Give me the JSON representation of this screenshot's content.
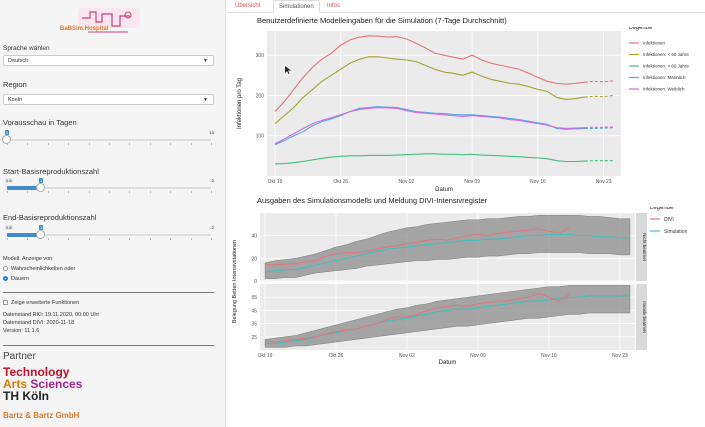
{
  "app": {
    "logo_text": "BaBSim.Hospital"
  },
  "sidebar": {
    "language_label": "Sprache wählen",
    "language_value": "Deutsch",
    "region_label": "Region",
    "region_value": "Koeln",
    "forecast_label": "Vorausschau in Tagen",
    "forecast_slider": {
      "min": 0,
      "max": 14,
      "value": 0,
      "min_label": "0",
      "max_label": "14",
      "value_label": "0"
    },
    "start_r_label": "Start-Basisreproduktionszahl",
    "start_r_slider": {
      "min": 0.8,
      "max": 2,
      "value": 1,
      "min_label": "0.8",
      "max_label": "2",
      "value_label": "1"
    },
    "end_r_label": "End-Basisreproduktionszahl",
    "end_r_slider": {
      "min": 0.8,
      "max": 2,
      "value": 1,
      "min_label": "0.8",
      "max_label": "2",
      "value_label": "1"
    },
    "model_label": "Modell. Anzeige von:",
    "radio_probabilities": "Wahrscheinlichkeiten oder",
    "radio_durations": "Dauern",
    "extended_functions": "Zeige erweiterte Funktionen",
    "data_rki": "Datenstand RKI: 19.11.2020, 00:00 Uhr",
    "data_divi": "Datenstand DIVI: 2020-11-18",
    "version": "Version: 11.1.6",
    "partner_label": "Partner",
    "partner_logo_1": "Technology",
    "partner_logo_2a": "Arts ",
    "partner_logo_2b": "Sciences",
    "partner_logo_3": "TH Köln",
    "partner_logo_4": "Bartz & Bartz GmbH"
  },
  "tabs": [
    "Übersicht",
    "Simulationen",
    "Infos"
  ],
  "colors": {
    "accent": "#d9534f",
    "slider": "#428bca"
  },
  "chart_data": [
    {
      "type": "line",
      "title": "Benutzerdefinierte Modelleingaben für die Simulation (7-Tage Durchschnitt)",
      "xlabel": "Datum",
      "ylabel": "Infektionen pro Tag",
      "x_ticks": [
        "Okt 19",
        "Okt 26",
        "Nov 02",
        "Nov 09",
        "Nov 16",
        "Nov 23"
      ],
      "ylim": [
        0,
        360
      ],
      "y_ticks": [
        100,
        200,
        300
      ],
      "legend_title": "Legende",
      "legend_position": "right",
      "dashed_from_day": 33,
      "series": [
        {
          "name": "Infektionen",
          "color": "#e8737b",
          "values": [
            160,
            185,
            215,
            245,
            270,
            290,
            305,
            325,
            338,
            345,
            348,
            347,
            345,
            346,
            340,
            330,
            318,
            305,
            300,
            295,
            290,
            300,
            288,
            280,
            275,
            270,
            265,
            255,
            245,
            235,
            230,
            228,
            230,
            233,
            235,
            234,
            236
          ]
        },
        {
          "name": "Infektionen: < 60 Jahre",
          "color": "#a3a52f",
          "values": [
            130,
            150,
            170,
            195,
            215,
            235,
            250,
            265,
            280,
            290,
            296,
            296,
            293,
            290,
            288,
            284,
            275,
            265,
            258,
            255,
            250,
            258,
            248,
            240,
            235,
            230,
            228,
            222,
            215,
            210,
            195,
            190,
            192,
            196,
            198,
            197,
            200
          ]
        },
        {
          "name": "Infektionen: > 60 Jahre",
          "color": "#3bbf7a",
          "values": [
            30,
            31,
            33,
            36,
            40,
            44,
            47,
            49,
            50,
            50,
            51,
            51,
            51,
            52,
            53,
            54,
            55,
            55,
            54,
            54,
            53,
            54,
            52,
            51,
            50,
            49,
            48,
            46,
            45,
            43,
            38,
            36,
            36,
            37,
            38,
            38,
            38
          ]
        },
        {
          "name": "Infektionen: Männlich",
          "color": "#4fa8e8",
          "values": [
            78,
            88,
            100,
            110,
            125,
            135,
            142,
            150,
            160,
            168,
            170,
            172,
            171,
            170,
            165,
            160,
            158,
            156,
            155,
            153,
            152,
            152,
            150,
            148,
            146,
            143,
            140,
            136,
            132,
            128,
            118,
            116,
            117,
            118,
            118,
            119,
            120
          ]
        },
        {
          "name": "Infektionen: Weiblich",
          "color": "#d866e0",
          "values": [
            80,
            92,
            105,
            118,
            130,
            138,
            145,
            152,
            160,
            165,
            168,
            170,
            169,
            168,
            162,
            158,
            156,
            154,
            152,
            150,
            148,
            150,
            148,
            146,
            144,
            140,
            138,
            134,
            130,
            126,
            120,
            118,
            119,
            120,
            121,
            121,
            122
          ]
        }
      ]
    },
    {
      "type": "line",
      "title": "Ausgaben des Simulationsmodells und Meldung DIVI-Intensivregister",
      "xlabel": "Datum",
      "ylabel": "Belegung Betten Intensivstationen",
      "x_ticks": [
        "Okt 19",
        "Okt 26",
        "Nov 02",
        "Nov 09",
        "Nov 16",
        "Nov 23"
      ],
      "legend_title": "Legende",
      "legend_position": "right",
      "panels": [
        {
          "strip": "Nicht beatmet",
          "ylim": [
            0,
            60
          ],
          "y_ticks": [
            0,
            20,
            40
          ],
          "DIVI": [
            15,
            14,
            15,
            15,
            17,
            18,
            22,
            24,
            25,
            25,
            26,
            28,
            30,
            31,
            33,
            34,
            36,
            37,
            36,
            38,
            40,
            41,
            40,
            42,
            43,
            44,
            45,
            46,
            44,
            42,
            47
          ],
          "Simulation": [
            8,
            9,
            10,
            10,
            12,
            14,
            16,
            18,
            20,
            22,
            24,
            26,
            28,
            29,
            30,
            31,
            32,
            33,
            34,
            35,
            36,
            36,
            37,
            37,
            38,
            39,
            40,
            40,
            41,
            41,
            41,
            40,
            40,
            39,
            39,
            38,
            38
          ],
          "band_low": [
            2,
            2,
            3,
            3,
            5,
            7,
            8,
            9,
            10,
            11,
            13,
            14,
            15,
            16,
            17,
            18,
            18,
            19,
            19,
            20,
            21,
            21,
            22,
            22,
            23,
            24,
            24,
            25,
            25,
            25,
            25,
            25,
            24,
            24,
            24,
            23,
            23
          ],
          "band_high": [
            16,
            18,
            19,
            20,
            22,
            24,
            27,
            30,
            32,
            35,
            37,
            40,
            43,
            45,
            47,
            48,
            50,
            51,
            52,
            53,
            54,
            54,
            55,
            55,
            56,
            57,
            57,
            58,
            58,
            58,
            58,
            58,
            57,
            57,
            56,
            55,
            55
          ]
        },
        {
          "strip": "Invasiv beatmet",
          "ylim": [
            15,
            65
          ],
          "y_ticks": [
            25,
            35,
            45,
            55
          ],
          "DIVI": [
            22,
            21,
            22,
            23,
            24,
            25,
            27,
            29,
            30,
            31,
            33,
            35,
            38,
            40,
            40,
            42,
            45,
            47,
            48,
            49,
            48,
            50,
            51,
            52,
            52,
            54,
            55,
            58,
            55,
            52,
            57
          ],
          "Simulation": [
            20,
            20,
            21,
            22,
            23,
            25,
            27,
            28,
            30,
            31,
            33,
            35,
            37,
            38,
            39,
            41,
            42,
            44,
            45,
            46,
            46,
            47,
            48,
            49,
            50,
            51,
            52,
            52,
            53,
            54,
            55,
            55,
            56,
            56,
            56,
            56,
            56
          ],
          "band_low": [
            17,
            17,
            17,
            18,
            18,
            19,
            20,
            21,
            22,
            23,
            24,
            25,
            26,
            27,
            28,
            29,
            30,
            31,
            32,
            33,
            33,
            34,
            35,
            36,
            37,
            38,
            39,
            39,
            40,
            41,
            42,
            42,
            43,
            43,
            43,
            43,
            43
          ],
          "band_high": [
            23,
            24,
            25,
            26,
            28,
            30,
            32,
            34,
            36,
            38,
            40,
            42,
            44,
            46,
            47,
            49,
            50,
            52,
            53,
            54,
            55,
            56,
            57,
            58,
            59,
            60,
            61,
            62,
            63,
            63,
            64,
            64,
            64,
            64,
            64,
            64,
            64
          ]
        }
      ],
      "series": [
        {
          "name": "DIVI",
          "color": "#e8737b"
        },
        {
          "name": "Simulation",
          "color": "#3cc0c0"
        }
      ]
    }
  ]
}
